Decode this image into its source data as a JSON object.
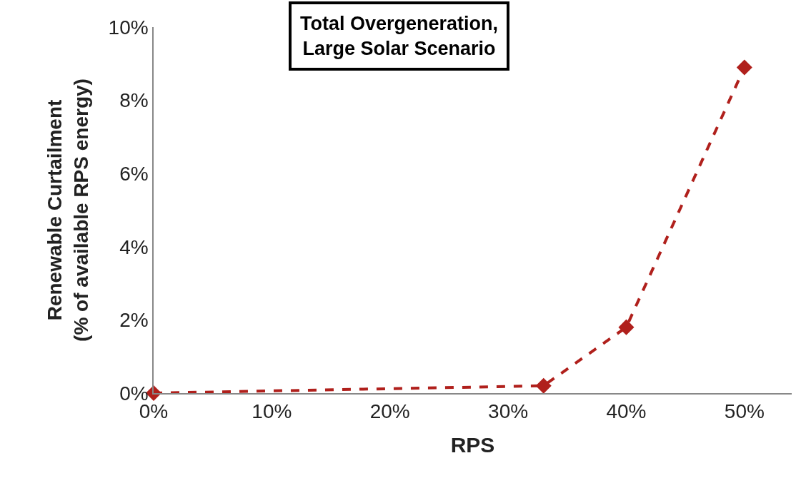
{
  "chart_data": {
    "type": "line",
    "title": "Total Overgeneration,\nLarge Solar Scenario",
    "xlabel": "RPS",
    "ylabel": "Renewable Curtailment\n(% of available RPS energy)",
    "x": [
      0,
      33,
      40,
      50
    ],
    "series": [
      {
        "color": "#b0201c",
        "values": [
          0,
          0.2,
          1.8,
          8.9
        ]
      }
    ],
    "xlim": [
      0,
      54
    ],
    "xticks": [
      {
        "value": 0,
        "label": "0%"
      },
      {
        "value": 10,
        "label": "10%"
      },
      {
        "value": 20,
        "label": "20%"
      },
      {
        "value": 30,
        "label": "30%"
      },
      {
        "value": 40,
        "label": "40%"
      },
      {
        "value": 50,
        "label": "50%"
      }
    ],
    "ylim": [
      0,
      10
    ],
    "yticks": [
      {
        "value": 0,
        "label": "0%"
      },
      {
        "value": 2,
        "label": "2%"
      },
      {
        "value": 4,
        "label": "4%"
      },
      {
        "value": 6,
        "label": "6%"
      },
      {
        "value": 8,
        "label": "8%"
      },
      {
        "value": 10,
        "label": "10%"
      }
    ],
    "grid": false,
    "marker": "diamond",
    "line_style": "dashed"
  }
}
